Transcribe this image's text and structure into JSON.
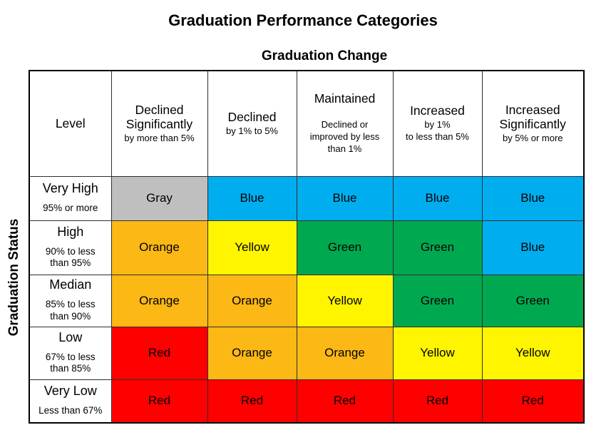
{
  "title": "Graduation Performance Categories",
  "axis": {
    "column_group_label": "Graduation Change",
    "row_group_label": "Graduation Status"
  },
  "table": {
    "corner_header": "Level",
    "column_headers": [
      {
        "label": "Declined Significantly",
        "sublabel": "by more than 5%"
      },
      {
        "label": "Declined",
        "sublabel": "by 1% to 5%"
      },
      {
        "label": "Maintained",
        "sublabel": "\nDeclined or\nimproved by less\nthan 1%"
      },
      {
        "label": "Increased",
        "sublabel": "by 1%\nto less than 5%"
      },
      {
        "label": "Increased Significantly",
        "sublabel": "by 5% or more"
      }
    ],
    "rows": [
      {
        "level": "Very High",
        "range": "95% or more",
        "cells": [
          "Gray",
          "Blue",
          "Blue",
          "Blue",
          "Blue"
        ]
      },
      {
        "level": "High",
        "range": "90% to less\nthan 95%",
        "cells": [
          "Orange",
          "Yellow",
          "Green",
          "Green",
          "Blue"
        ]
      },
      {
        "level": "Median",
        "range": "85% to less\nthan 90%",
        "cells": [
          "Orange",
          "Orange",
          "Yellow",
          "Green",
          "Green"
        ]
      },
      {
        "level": "Low",
        "range": "67% to less\nthan 85%",
        "cells": [
          "Red",
          "Orange",
          "Orange",
          "Yellow",
          "Yellow"
        ]
      },
      {
        "level": "Very Low",
        "range": "Less than 67%",
        "cells": [
          "Red",
          "Red",
          "Red",
          "Red",
          "Red"
        ]
      }
    ]
  },
  "colors": {
    "Gray": "#BFBFBF",
    "Blue": "#00AEEF",
    "Orange": "#FCB814",
    "Yellow": "#FFF500",
    "Green": "#00A94F",
    "Red": "#FE0000"
  }
}
